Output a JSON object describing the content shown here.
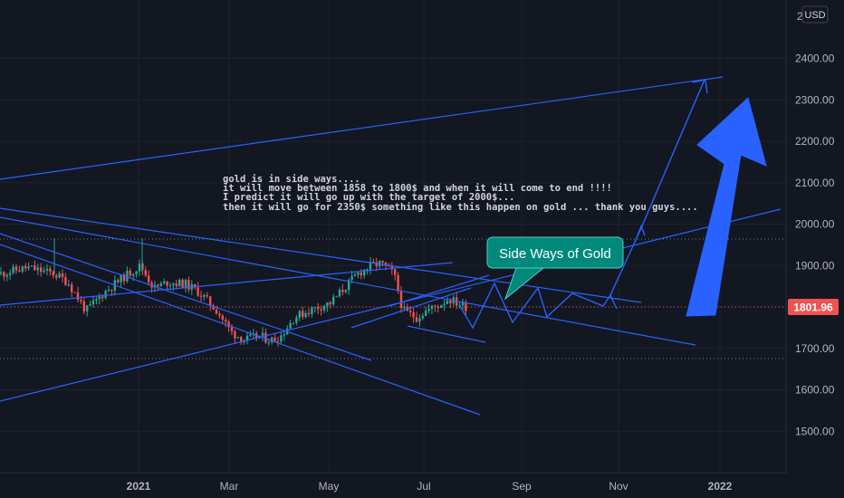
{
  "chart_data": {
    "type": "candlestick",
    "currency": "USD",
    "y_top_tick": "2",
    "y_ticks": [
      "2400.00",
      "2300.00",
      "2200.00",
      "2100.00",
      "2000.00",
      "1900.00",
      "1800.00",
      "1700.00",
      "1600.00",
      "1500.00"
    ],
    "x_ticks": [
      "2021",
      "Mar",
      "May",
      "Jul",
      "Sep",
      "Nov",
      "2022"
    ],
    "last_price": "1801.96",
    "note_lines": [
      "gold is in side ways....",
      "it will move between 1858 to 1800$ and when it will come to end !!!!",
      "I predict it will go up with the target of 2000$...",
      "then it will go for 2350$ something  like this happen on gold ... thank you guys...."
    ],
    "callout": "Side Ways of Gold",
    "colors": {
      "background": "#131722",
      "up": "#26a69a",
      "down": "#ef5350",
      "drawing": "#2962ff",
      "callout": "#00897b",
      "price_line": "#ef5350"
    }
  }
}
